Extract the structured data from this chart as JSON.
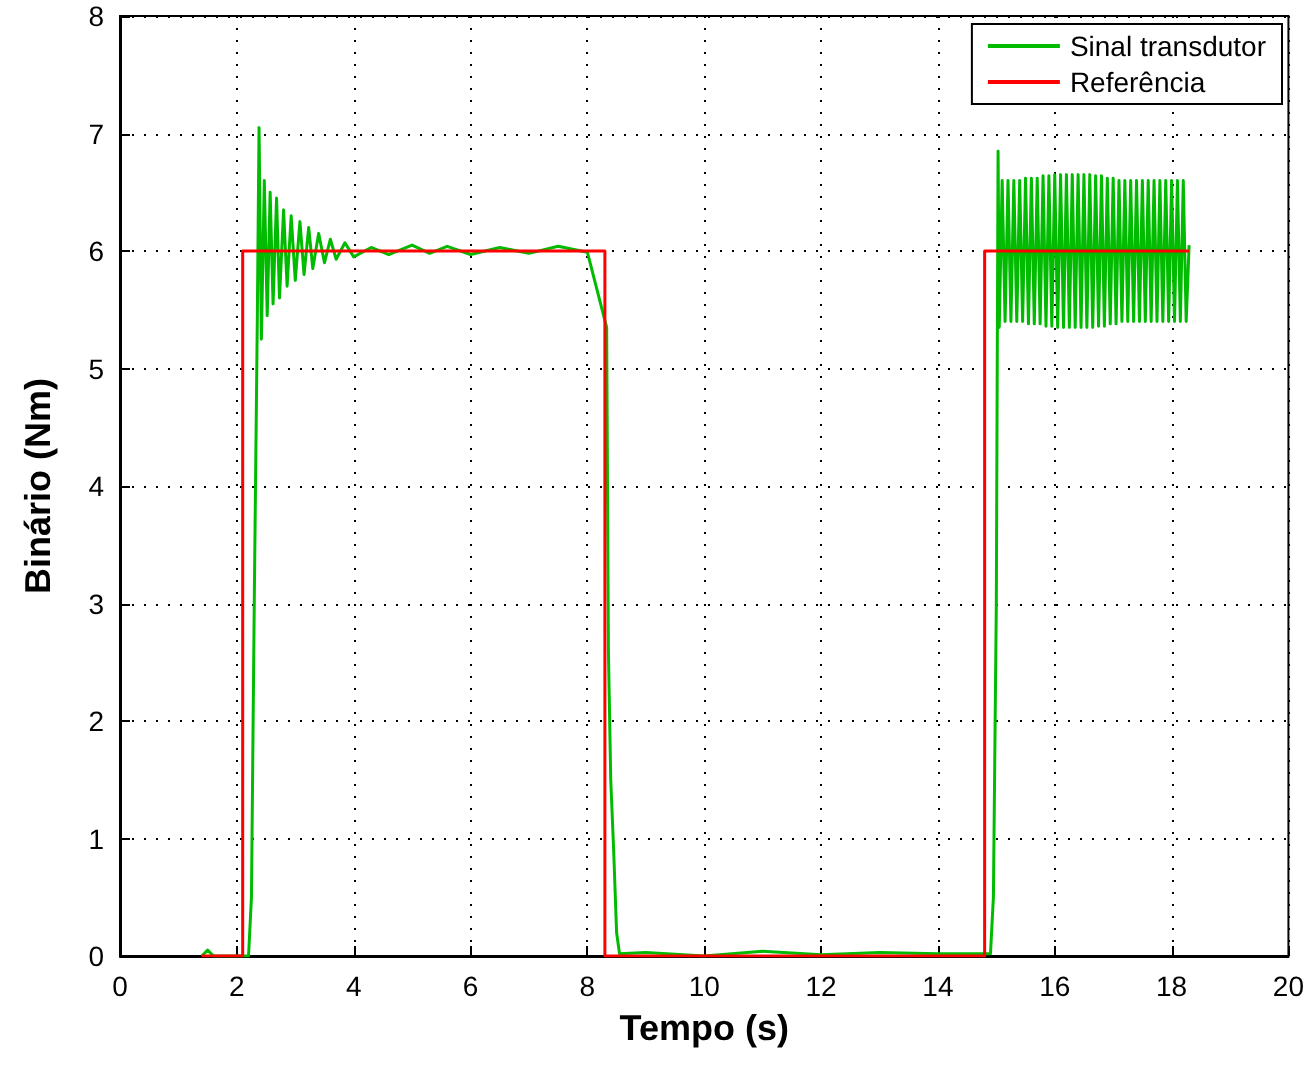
{
  "chart_data": {
    "type": "line",
    "xlabel": "Tempo (s)",
    "ylabel": "Binário (Nm)",
    "xlim": [
      0,
      20
    ],
    "xticks": [
      0,
      2,
      4,
      6,
      8,
      10,
      12,
      14,
      16,
      18,
      20
    ],
    "ylim": [
      0,
      8
    ],
    "yticks": [
      0,
      1,
      2,
      3,
      4,
      5,
      6,
      7,
      8
    ],
    "grid": true,
    "legend": "top right",
    "marker": "none",
    "line_style": "solid",
    "series": [
      {
        "name": "Sinal transdutor",
        "color": "#00bb00",
        "x": [
          1.4,
          1.5,
          1.6,
          2.2,
          2.25,
          2.3,
          2.35,
          2.38,
          2.42,
          2.47,
          2.52,
          2.57,
          2.62,
          2.68,
          2.73,
          2.8,
          2.86,
          2.93,
          3.0,
          3.08,
          3.15,
          3.23,
          3.3,
          3.4,
          3.5,
          3.6,
          3.7,
          3.85,
          4.0,
          4.3,
          4.6,
          5.0,
          5.3,
          5.6,
          6.0,
          6.5,
          7.0,
          7.5,
          8.0,
          8.33,
          8.36,
          8.4,
          8.45,
          8.5,
          8.55,
          9,
          10,
          11,
          12,
          13,
          14,
          14.9,
          14.95,
          15.0,
          15.03,
          15.05,
          15.1,
          15.15,
          15.2,
          15.25,
          15.3,
          15.35,
          15.4,
          15.45,
          15.5,
          15.55,
          15.6,
          15.65,
          15.7,
          15.75,
          15.8,
          15.85,
          15.9,
          15.95,
          16.0,
          16.05,
          16.1,
          16.15,
          16.2,
          16.25,
          16.3,
          16.35,
          16.4,
          16.45,
          16.5,
          16.55,
          16.6,
          16.65,
          16.7,
          16.75,
          16.8,
          16.85,
          16.9,
          16.95,
          17.0,
          17.05,
          17.1,
          17.15,
          17.2,
          17.25,
          17.3,
          17.35,
          17.4,
          17.45,
          17.5,
          17.55,
          17.6,
          17.65,
          17.7,
          17.75,
          17.8,
          17.85,
          17.9,
          17.95,
          18.0,
          18.05,
          18.1,
          18.15,
          18.2,
          18.25,
          18.3
        ],
        "values": [
          0,
          0.05,
          0,
          0,
          0.5,
          3.1,
          5.4,
          7.05,
          5.25,
          6.6,
          5.45,
          6.5,
          5.55,
          6.45,
          5.6,
          6.35,
          5.7,
          6.3,
          5.75,
          6.25,
          5.8,
          6.2,
          5.85,
          6.15,
          5.9,
          6.1,
          5.93,
          6.07,
          5.95,
          6.03,
          5.97,
          6.05,
          5.98,
          6.04,
          5.97,
          6.03,
          5.98,
          6.04,
          5.99,
          5.35,
          2.6,
          1.5,
          0.9,
          0.2,
          0.02,
          0.03,
          0,
          0.04,
          0.01,
          0.03,
          0.02,
          0.02,
          0.5,
          3.0,
          6.85,
          5.35,
          6.6,
          5.4,
          6.6,
          5.4,
          6.6,
          5.4,
          6.6,
          5.4,
          6.62,
          5.38,
          6.62,
          5.38,
          6.62,
          5.38,
          6.64,
          5.36,
          6.64,
          5.36,
          6.65,
          5.35,
          6.65,
          5.35,
          6.65,
          5.35,
          6.65,
          5.35,
          6.65,
          5.35,
          6.65,
          5.35,
          6.65,
          5.35,
          6.64,
          5.36,
          6.64,
          5.36,
          6.62,
          5.38,
          6.62,
          5.38,
          6.6,
          5.4,
          6.6,
          5.4,
          6.6,
          5.4,
          6.6,
          5.4,
          6.6,
          5.4,
          6.6,
          5.4,
          6.6,
          5.4,
          6.6,
          5.4,
          6.6,
          5.4,
          6.6,
          5.4,
          6.6,
          5.4,
          6.6,
          5.4,
          6.05
        ]
      },
      {
        "name": "Referência",
        "color": "#ff0000",
        "type": "step",
        "x": [
          1.4,
          2.1,
          8.3,
          14.8,
          18.3
        ],
        "values": [
          0,
          6,
          0,
          6,
          6
        ]
      }
    ]
  }
}
